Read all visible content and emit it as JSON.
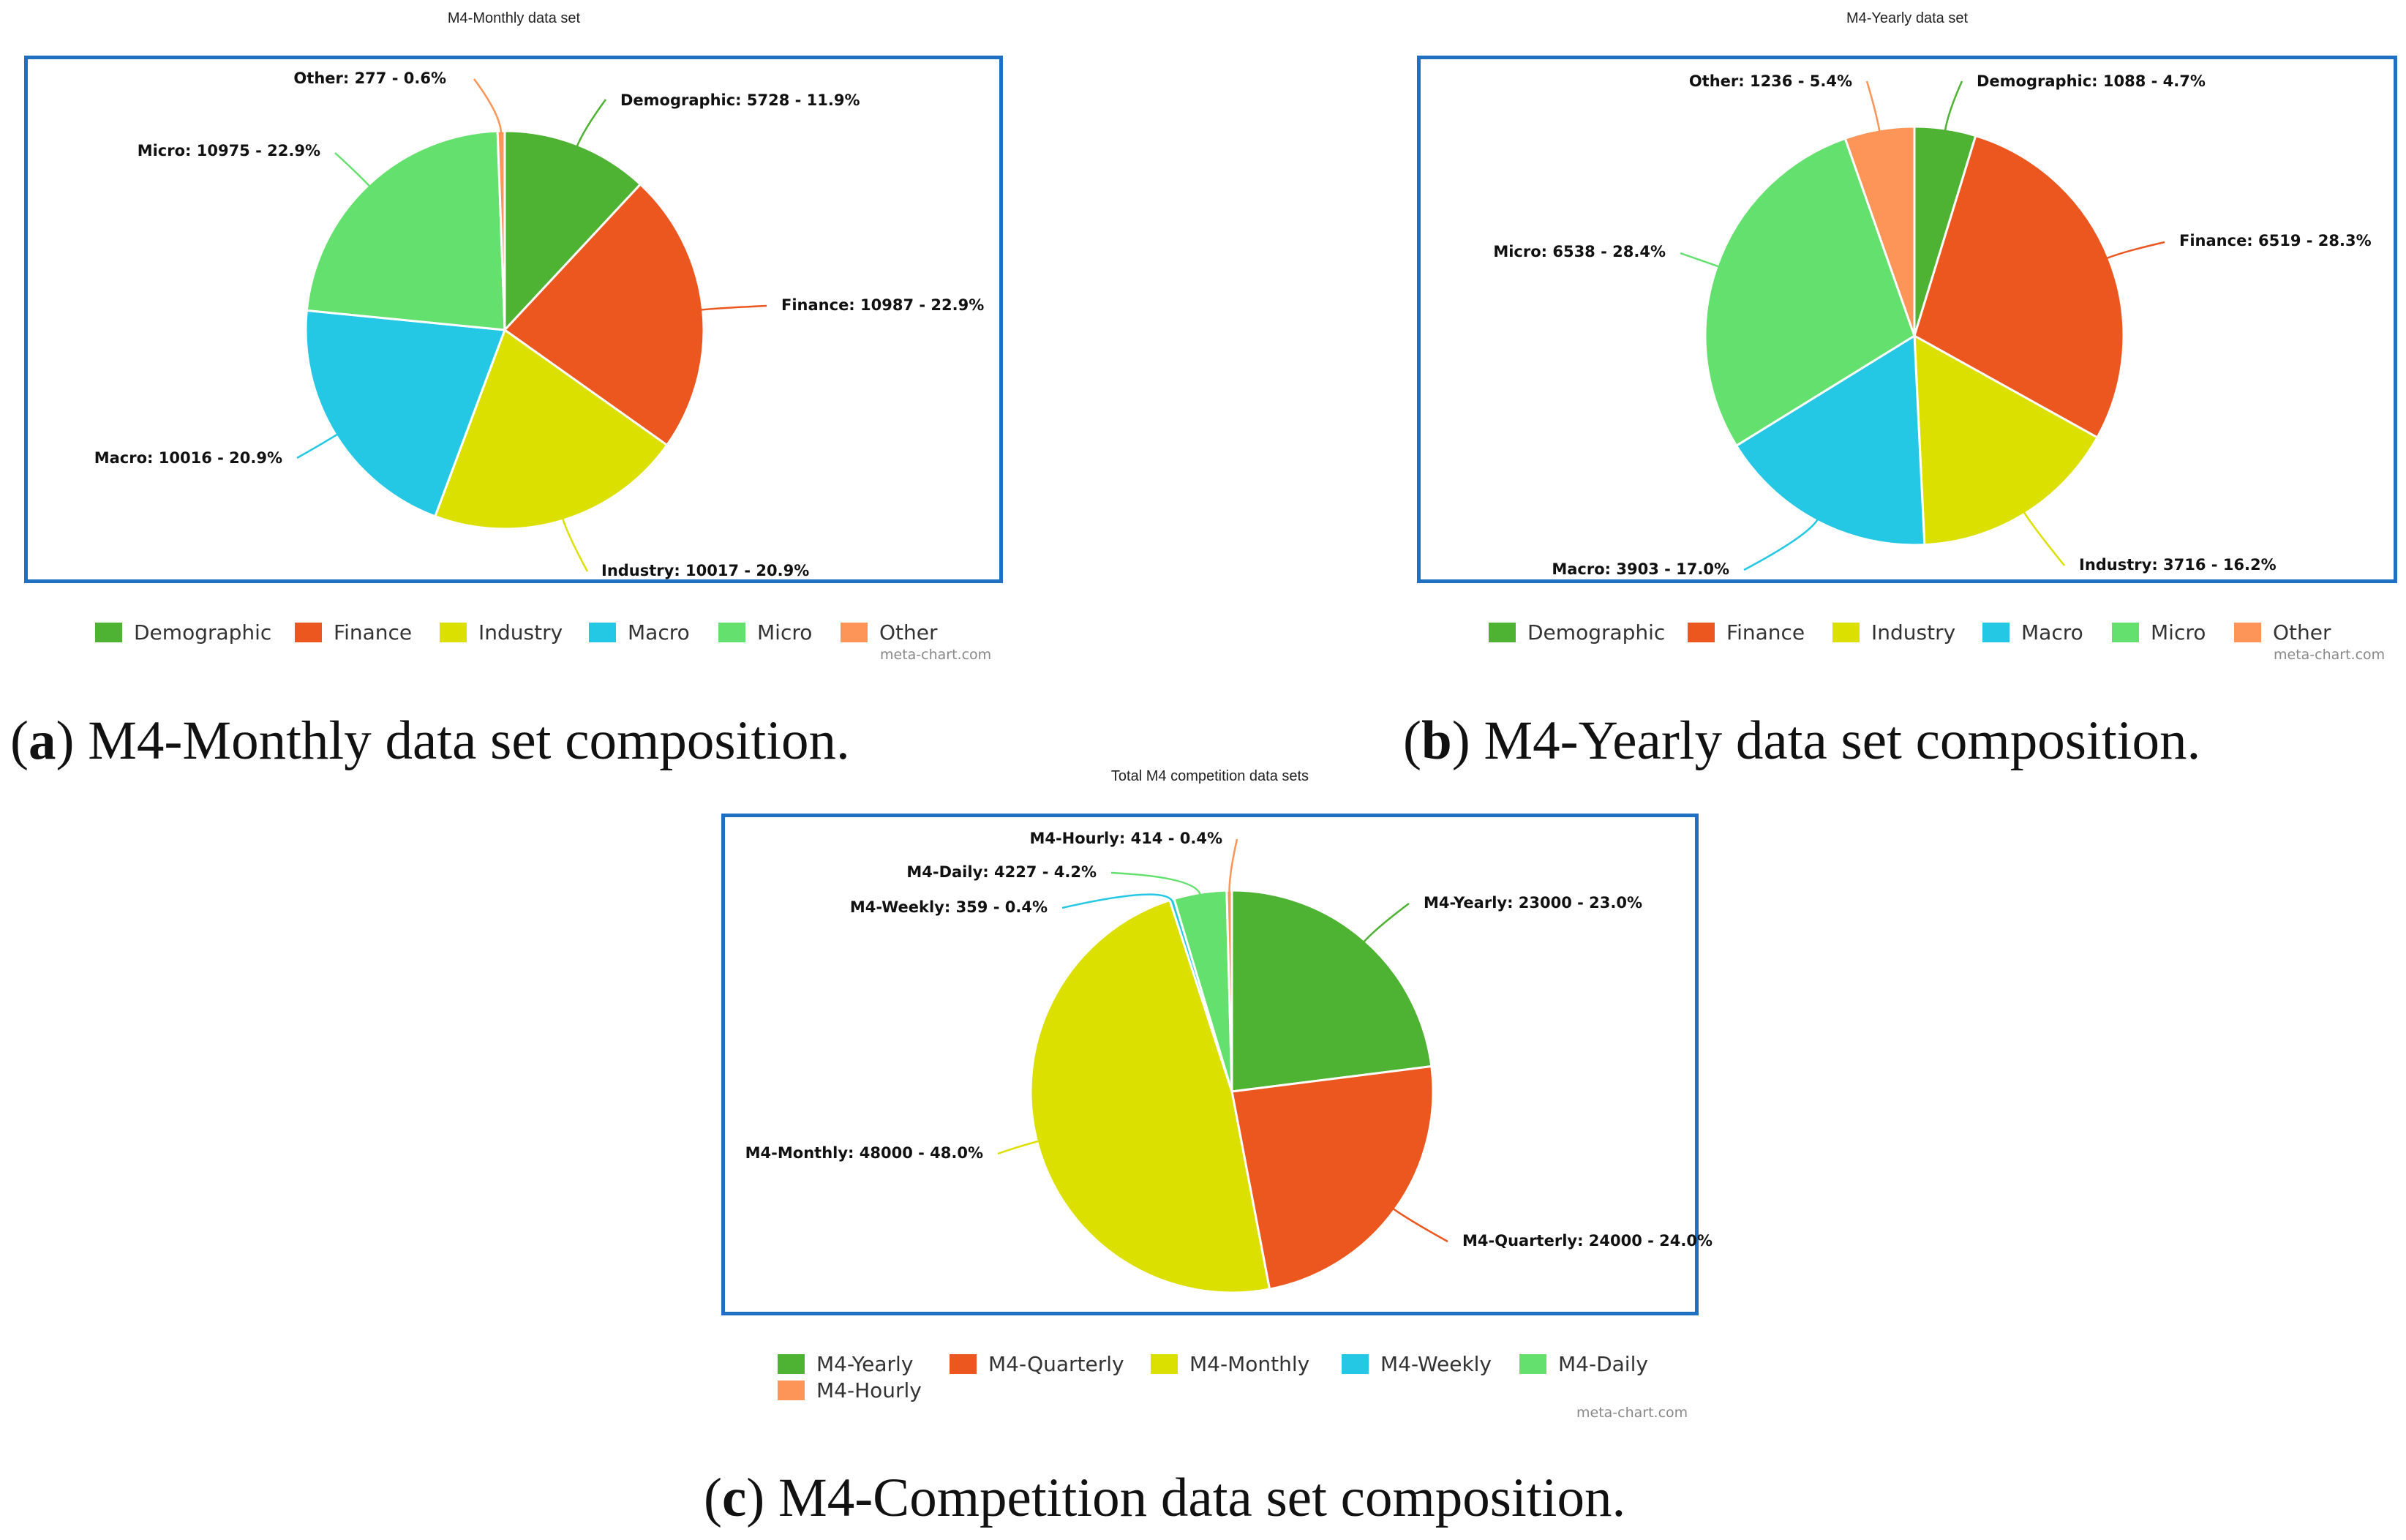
{
  "chart_data": [
    {
      "type": "pie",
      "title": "M4-Monthly data set",
      "categories": [
        "Demographic",
        "Finance",
        "Industry",
        "Macro",
        "Micro",
        "Other"
      ],
      "values": [
        5728,
        10987,
        10017,
        10016,
        10975,
        277
      ],
      "percents": [
        "11.9%",
        "22.9%",
        "20.9%",
        "20.9%",
        "22.9%",
        "0.6%"
      ],
      "slice_labels": [
        "Demographic: 5728 - 11.9%",
        "Finance: 10987 - 22.9%",
        "Industry: 10017 - 20.9%",
        "Macro: 10016 - 20.9%",
        "Micro: 10975 - 22.9%",
        "Other: 277 - 0.6%"
      ],
      "colors": [
        "#4eb233",
        "#ec571f",
        "#dce000",
        "#25c8e4",
        "#64e06e",
        "#fc9557"
      ],
      "credit": "meta-chart.com",
      "caption_letter": "a",
      "caption_text": " M4-Monthly data set composition."
    },
    {
      "type": "pie",
      "title": "M4-Yearly data set",
      "categories": [
        "Demographic",
        "Finance",
        "Industry",
        "Macro",
        "Micro",
        "Other"
      ],
      "values": [
        1088,
        6519,
        3716,
        3903,
        6538,
        1236
      ],
      "percents": [
        "4.7%",
        "28.3%",
        "16.2%",
        "17.0%",
        "28.4%",
        "5.4%"
      ],
      "slice_labels": [
        "Demographic: 1088 - 4.7%",
        "Finance: 6519 - 28.3%",
        "Industry: 3716 - 16.2%",
        "Macro: 3903 - 17.0%",
        "Micro: 6538 - 28.4%",
        "Other: 1236 - 5.4%"
      ],
      "colors": [
        "#4eb233",
        "#ec571f",
        "#dce000",
        "#25c8e4",
        "#64e06e",
        "#fc9557"
      ],
      "credit": "meta-chart.com",
      "caption_letter": "b",
      "caption_text": " M4-Yearly data set composition."
    },
    {
      "type": "pie",
      "title": "Total M4 competition data sets",
      "categories": [
        "M4-Yearly",
        "M4-Quarterly",
        "M4-Monthly",
        "M4-Weekly",
        "M4-Daily",
        "M4-Hourly"
      ],
      "values": [
        23000,
        24000,
        48000,
        359,
        4227,
        414
      ],
      "percents": [
        "23.0%",
        "24.0%",
        "48.0%",
        "0.4%",
        "4.2%",
        "0.4%"
      ],
      "slice_labels": [
        "M4-Yearly: 23000 - 23.0%",
        "M4-Quarterly: 24000 - 24.0%",
        "M4-Monthly: 48000 - 48.0%",
        "M4-Weekly: 359 - 0.4%",
        "M4-Daily: 4227 - 4.2%",
        "M4-Hourly: 414 - 0.4%"
      ],
      "colors": [
        "#4eb233",
        "#ec571f",
        "#dce000",
        "#25c8e4",
        "#64e06e",
        "#fc9557"
      ],
      "credit": "meta-chart.com",
      "caption_letter": "c",
      "caption_text": " M4-Competition data set composition."
    }
  ]
}
